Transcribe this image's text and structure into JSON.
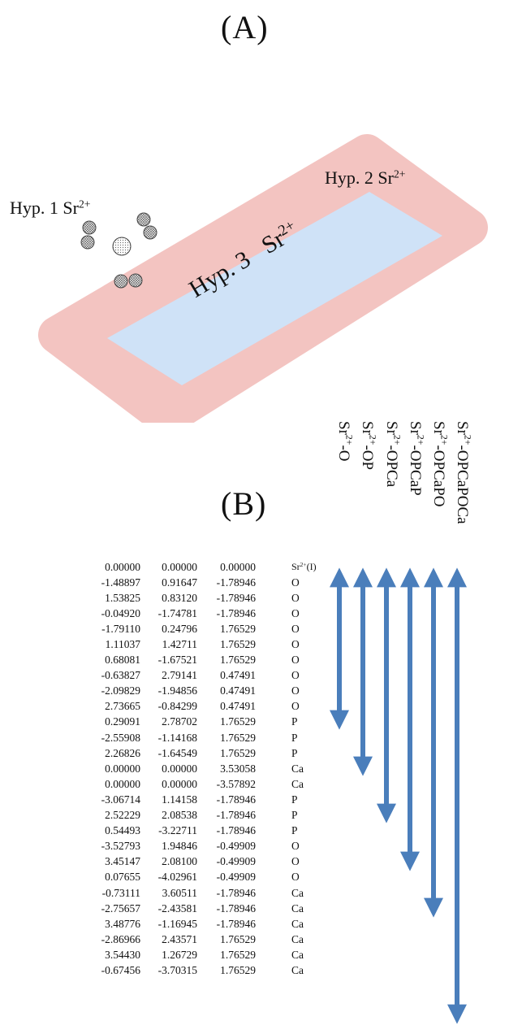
{
  "panel_a": {
    "label": "(A)",
    "hyp1": {
      "text": "Hyp. 1 Sr",
      "charge": "2+"
    },
    "hyp2": {
      "text": "Hyp. 2 Sr",
      "charge": "2+"
    },
    "hyp3": {
      "text": "Hyp. 3",
      "ion": "Sr",
      "charge": "2+"
    },
    "colors": {
      "outer_band": "#f3c4c1",
      "inner_rect": "#cfe2f7",
      "arrow": "#4a7ebb"
    }
  },
  "panel_b": {
    "label": "(B)",
    "column_labels": [
      {
        "ion": "Sr",
        "charge": "2+",
        "suffix": "-O"
      },
      {
        "ion": "Sr",
        "charge": "2+",
        "suffix": "-OP"
      },
      {
        "ion": "Sr",
        "charge": "2+",
        "suffix": "-OPCa"
      },
      {
        "ion": "Sr",
        "charge": "2+",
        "suffix": "-OPCaP"
      },
      {
        "ion": "Sr",
        "charge": "2+",
        "suffix": "-OPCaPO"
      },
      {
        "ion": "Sr",
        "charge": "2+",
        "suffix": "-OPCaPOCa"
      }
    ],
    "rows": [
      {
        "x": "0.00000",
        "y": "0.00000",
        "z": "0.00000",
        "el": "Sr",
        "el_sup": "2+",
        "el_suffix": "(I)"
      },
      {
        "x": "-1.48897",
        "y": "0.91647",
        "z": "-1.78946",
        "el": "O"
      },
      {
        "x": "1.53825",
        "y": "0.83120",
        "z": "-1.78946",
        "el": "O"
      },
      {
        "x": "-0.04920",
        "y": "-1.74781",
        "z": "-1.78946",
        "el": "O"
      },
      {
        "x": "-1.79110",
        "y": "0.24796",
        "z": "1.76529",
        "el": "O"
      },
      {
        "x": "1.11037",
        "y": "1.42711",
        "z": "1.76529",
        "el": "O"
      },
      {
        "x": "0.68081",
        "y": "-1.67521",
        "z": "1.76529",
        "el": "O"
      },
      {
        "x": "-0.63827",
        "y": "2.79141",
        "z": "0.47491",
        "el": "O"
      },
      {
        "x": "-2.09829",
        "y": "-1.94856",
        "z": "0.47491",
        "el": "O"
      },
      {
        "x": "2.73665",
        "y": "-0.84299",
        "z": "0.47491",
        "el": "O"
      },
      {
        "x": "0.29091",
        "y": "2.78702",
        "z": "1.76529",
        "el": "P"
      },
      {
        "x": "-2.55908",
        "y": "-1.14168",
        "z": "1.76529",
        "el": "P"
      },
      {
        "x": "2.26826",
        "y": "-1.64549",
        "z": "1.76529",
        "el": "P"
      },
      {
        "x": "0.00000",
        "y": "0.00000",
        "z": "3.53058",
        "el": "Ca"
      },
      {
        "x": "0.00000",
        "y": "0.00000",
        "z": "-3.57892",
        "el": "Ca"
      },
      {
        "x": "-3.06714",
        "y": "1.14158",
        "z": "-1.78946",
        "el": "P"
      },
      {
        "x": "2.52229",
        "y": "2.08538",
        "z": "-1.78946",
        "el": "P"
      },
      {
        "x": "0.54493",
        "y": "-3.22711",
        "z": "-1.78946",
        "el": "P"
      },
      {
        "x": "-3.52793",
        "y": "1.94846",
        "z": "-0.49909",
        "el": "O"
      },
      {
        "x": "3.45147",
        "y": "2.08100",
        "z": "-0.49909",
        "el": "O"
      },
      {
        "x": "0.07655",
        "y": "-4.02961",
        "z": "-0.49909",
        "el": "O"
      },
      {
        "x": "-0.73111",
        "y": "3.60511",
        "z": "-1.78946",
        "el": "Ca"
      },
      {
        "x": "-2.75657",
        "y": "-2.43581",
        "z": "-1.78946",
        "el": "Ca"
      },
      {
        "x": "3.48776",
        "y": "-1.16945",
        "z": "-1.78946",
        "el": "Ca"
      },
      {
        "x": "-2.86966",
        "y": "2.43571",
        "z": "1.76529",
        "el": "Ca"
      },
      {
        "x": "3.54430",
        "y": "1.26729",
        "z": "1.76529",
        "el": "Ca"
      },
      {
        "x": "-0.67456",
        "y": "-3.70315",
        "z": "1.76529",
        "el": "Ca"
      }
    ]
  }
}
